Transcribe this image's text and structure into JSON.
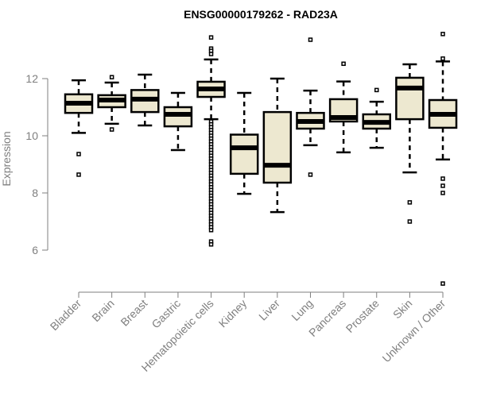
{
  "chart_data": {
    "type": "boxplot",
    "title": "ENSG00000179262 - RAD23A",
    "xlabel": "",
    "ylabel": "Expression",
    "ylim": [
      4.6,
      13.7
    ],
    "yticks": [
      6,
      8,
      10,
      12
    ],
    "grid": false,
    "colors": {
      "box_fill": "#ede8d0",
      "stroke": "#000000",
      "axis": "#7f7f7f"
    },
    "categories": [
      "Bladder",
      "Brain",
      "Breast",
      "Gastric",
      "Hematopoietic cells",
      "Kidney",
      "Liver",
      "Lung",
      "Pancreas",
      "Prostate",
      "Skin",
      "Unknown / Other"
    ],
    "boxes": [
      {
        "name": "Bladder",
        "whisker_low": 10.1,
        "q1": 10.8,
        "median": 11.14,
        "q3": 11.45,
        "whisker_high": 11.94,
        "outliers": [
          9.36,
          8.64
        ]
      },
      {
        "name": "Brain",
        "whisker_low": 10.42,
        "q1": 11.0,
        "median": 11.25,
        "q3": 11.42,
        "whisker_high": 11.86,
        "outliers": [
          12.05,
          10.22
        ]
      },
      {
        "name": "Breast",
        "whisker_low": 10.36,
        "q1": 10.83,
        "median": 11.28,
        "q3": 11.6,
        "whisker_high": 12.14,
        "outliers": []
      },
      {
        "name": "Gastric",
        "whisker_low": 9.5,
        "q1": 10.33,
        "median": 10.75,
        "q3": 11.0,
        "whisker_high": 11.5,
        "outliers": []
      },
      {
        "name": "Hematopoietic cells",
        "whisker_low": 10.58,
        "q1": 11.36,
        "median": 11.64,
        "q3": 11.89,
        "whisker_high": 12.67,
        "outliers": [
          13.44,
          13.05,
          12.97,
          12.86,
          10.5,
          10.4,
          10.3,
          10.2,
          10.1,
          10.0,
          9.9,
          9.8,
          9.7,
          9.6,
          9.5,
          9.4,
          9.3,
          9.2,
          9.1,
          9.0,
          8.9,
          8.8,
          8.7,
          8.6,
          8.5,
          8.4,
          8.3,
          8.2,
          8.1,
          8.0,
          7.9,
          7.8,
          7.7,
          7.6,
          7.5,
          7.4,
          7.3,
          7.2,
          7.1,
          7.0,
          6.9,
          6.8,
          6.7,
          6.3,
          6.2
        ]
      },
      {
        "name": "Kidney",
        "whisker_low": 7.97,
        "q1": 8.67,
        "median": 9.58,
        "q3": 10.04,
        "whisker_high": 11.5,
        "outliers": []
      },
      {
        "name": "Liver",
        "whisker_low": 7.33,
        "q1": 8.36,
        "median": 8.97,
        "q3": 10.83,
        "whisker_high": 12.0,
        "outliers": []
      },
      {
        "name": "Lung",
        "whisker_low": 9.67,
        "q1": 10.25,
        "median": 10.5,
        "q3": 10.8,
        "whisker_high": 11.58,
        "outliers": [
          13.36,
          8.64
        ]
      },
      {
        "name": "Pancreas",
        "whisker_low": 9.42,
        "q1": 10.5,
        "median": 10.64,
        "q3": 11.28,
        "whisker_high": 11.9,
        "outliers": [
          12.52
        ]
      },
      {
        "name": "Prostate",
        "whisker_low": 9.58,
        "q1": 10.25,
        "median": 10.47,
        "q3": 10.75,
        "whisker_high": 11.19,
        "outliers": [
          11.6
        ]
      },
      {
        "name": "Skin",
        "whisker_low": 8.72,
        "q1": 10.58,
        "median": 11.67,
        "q3": 12.03,
        "whisker_high": 12.5,
        "outliers": [
          7.67,
          7.0
        ]
      },
      {
        "name": "Unknown / Other",
        "whisker_low": 9.17,
        "q1": 10.28,
        "median": 10.75,
        "q3": 11.25,
        "whisker_high": 12.6,
        "outliers": [
          13.56,
          12.7,
          8.5,
          8.25,
          8.0,
          4.83
        ]
      }
    ]
  }
}
